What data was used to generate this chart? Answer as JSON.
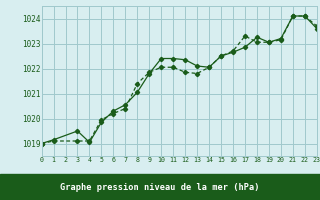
{
  "title": "Graphe pression niveau de la mer (hPa)",
  "bg_color": "#d8eef0",
  "grid_color": "#a0c8cc",
  "line_color": "#1a5c1a",
  "label_bg_color": "#1a5c1a",
  "label_text_color": "#ffffff",
  "x_min": 0,
  "x_max": 23,
  "y_min": 1018.5,
  "y_max": 1024.5,
  "yticks": [
    1019,
    1020,
    1021,
    1022,
    1023,
    1024
  ],
  "xticks": [
    0,
    1,
    2,
    3,
    4,
    5,
    6,
    7,
    8,
    9,
    10,
    11,
    12,
    13,
    14,
    15,
    16,
    17,
    18,
    19,
    20,
    21,
    22,
    23
  ],
  "series1_x": [
    0,
    1,
    3,
    4,
    5,
    6,
    7,
    8,
    9,
    10,
    11,
    12,
    13,
    14,
    15,
    16,
    17,
    18,
    19,
    20,
    21,
    22,
    23
  ],
  "series1_y": [
    1019.0,
    1019.15,
    1019.5,
    1019.05,
    1019.85,
    1020.3,
    1020.55,
    1021.05,
    1021.8,
    1022.4,
    1022.4,
    1022.35,
    1022.1,
    1022.05,
    1022.5,
    1022.65,
    1022.85,
    1023.25,
    1023.05,
    1023.2,
    1024.1,
    1024.1,
    1023.6
  ],
  "series2_x": [
    0,
    1,
    3,
    4,
    5,
    6,
    7,
    8,
    9,
    10,
    11,
    12,
    13,
    14,
    15,
    16,
    17,
    18,
    19,
    20,
    21,
    22,
    23
  ],
  "series2_y": [
    1019.0,
    1019.1,
    1019.1,
    1019.1,
    1019.95,
    1020.2,
    1020.4,
    1021.4,
    1021.85,
    1022.05,
    1022.05,
    1021.85,
    1021.8,
    1022.05,
    1022.5,
    1022.7,
    1023.3,
    1023.05,
    1023.05,
    1023.15,
    1024.1,
    1024.1,
    1023.7
  ]
}
